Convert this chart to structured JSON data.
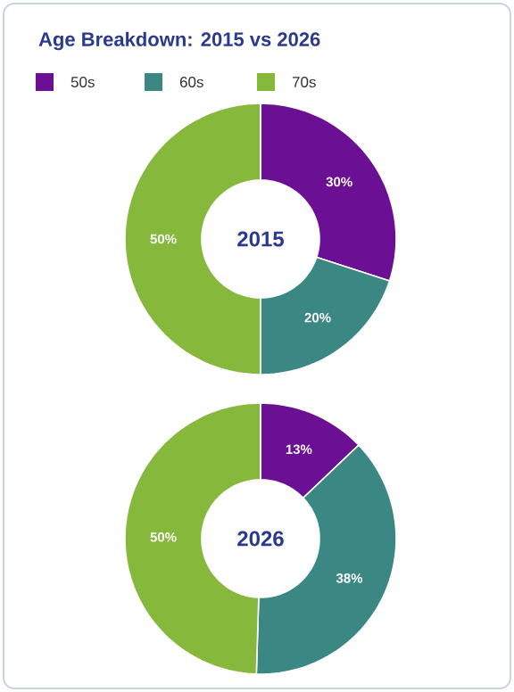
{
  "chart_data": [
    {
      "type": "donut",
      "title": "Age Breakdown: 2015 vs 2026",
      "categories": [
        "50s",
        "60s",
        "70s"
      ],
      "values": [
        30,
        20,
        50
      ],
      "colors": [
        "#6b0f94",
        "#3a8783",
        "#86b83c"
      ],
      "value_labels": [
        "30%",
        "20%",
        "50%"
      ],
      "annotations": [
        "2015"
      ],
      "legend": "top left"
    },
    {
      "type": "donut",
      "categories": [
        null,
        null,
        null
      ],
      "values": [
        13,
        38,
        50
      ],
      "colors": [
        "#6b0f94",
        "#3a8783",
        "#86b83c"
      ],
      "value_labels": [
        "13%",
        "38%",
        "50%"
      ],
      "annotations": [
        "2026"
      ]
    }
  ]
}
